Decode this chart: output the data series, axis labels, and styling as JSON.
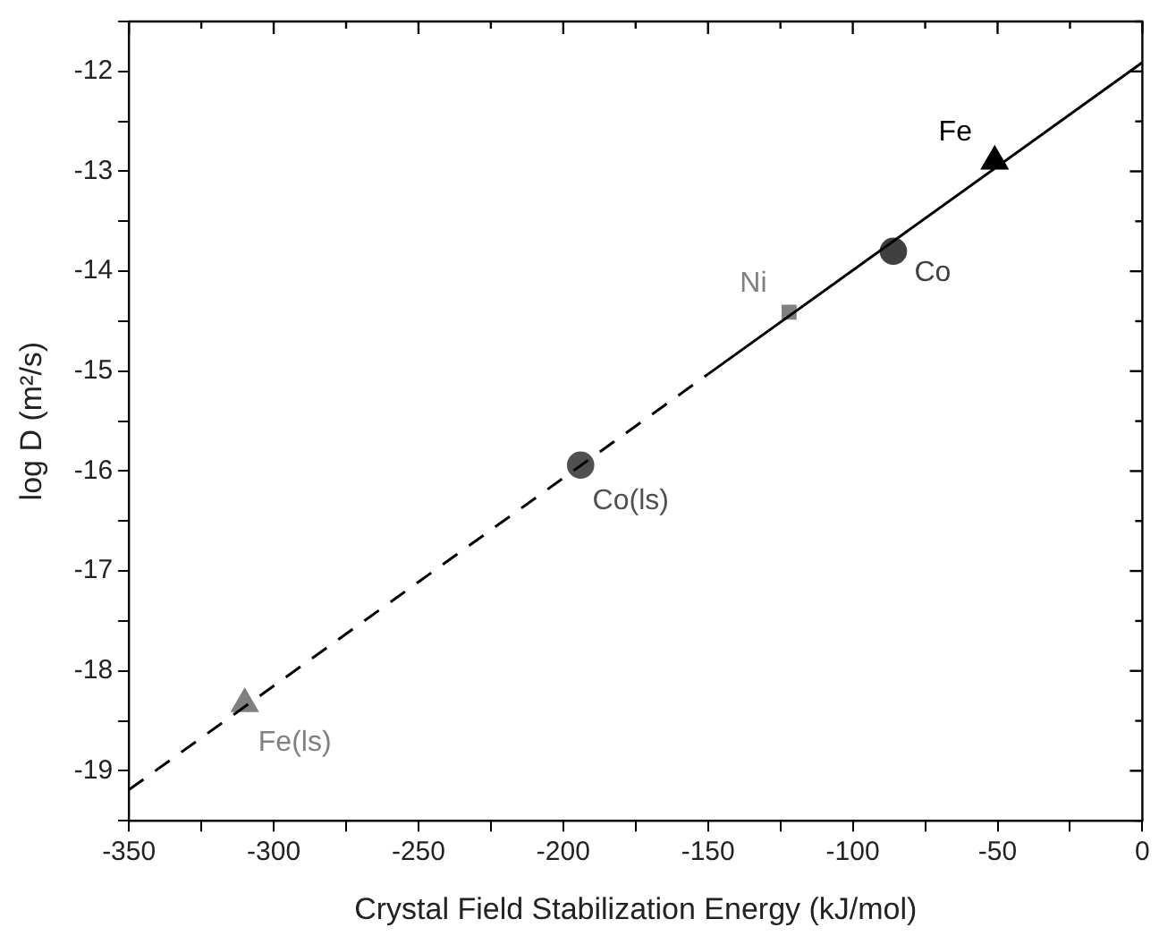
{
  "chart_data": {
    "type": "scatter",
    "xlabel": "Crystal Field Stabilization Energy (kJ/mol)",
    "ylabel": "log D (m²/s)",
    "xlim": [
      -350,
      0
    ],
    "ylim": [
      -19.5,
      -11.5
    ],
    "xticks": [
      -350,
      {
        "value": -325,
        "label": null
      },
      -300,
      {
        "value": -275,
        "label": null
      },
      -250,
      {
        "value": -225,
        "label": null
      },
      -200,
      {
        "value": -175,
        "label": null
      },
      -150,
      {
        "value": -125,
        "label": null
      },
      -100,
      {
        "value": -75,
        "label": null
      },
      -50,
      {
        "value": -25,
        "label": null
      },
      0
    ],
    "yticks": [
      {
        "value": -19.5,
        "label": null
      },
      -19,
      {
        "value": -18.5,
        "label": null
      },
      -18,
      {
        "value": -17.5,
        "label": null
      },
      -17,
      {
        "value": -16.5,
        "label": null
      },
      -16,
      {
        "value": -15.5,
        "label": null
      },
      -15,
      {
        "value": -14.5,
        "label": null
      },
      -14,
      {
        "value": -13.5,
        "label": null
      },
      -13,
      {
        "value": -12.5,
        "label": null
      },
      -12,
      {
        "value": -11.5,
        "label": null
      }
    ],
    "grid": false,
    "legend": false,
    "series": [
      {
        "type": "line",
        "color": "#000000",
        "x": [
          -350,
          -150
        ],
        "values": [
          -19.19,
          -15.03
        ],
        "line_style": "dashed",
        "marker": "none"
      },
      {
        "type": "line",
        "color": "#000000",
        "x": [
          -150,
          0
        ],
        "values": [
          -15.03,
          -11.91
        ],
        "line_style": "solid",
        "marker": "none"
      },
      {
        "name": "Fe",
        "color": "#000000",
        "x": [
          -51
        ],
        "values": [
          -12.9
        ],
        "marker": "triangle"
      },
      {
        "name": "Co",
        "color": "#404040",
        "x": [
          -86
        ],
        "values": [
          -13.8
        ],
        "marker": "circle"
      },
      {
        "name": "Ni",
        "color": "#808080",
        "x": [
          -122
        ],
        "values": [
          -14.41
        ],
        "marker": "square"
      },
      {
        "name": "Co(ls)",
        "color": "#505050",
        "x": [
          -194
        ],
        "values": [
          -15.94
        ],
        "marker": "circle"
      },
      {
        "name": "Fe(ls)",
        "color": "#808080",
        "x": [
          -310
        ],
        "values": [
          -18.33
        ],
        "marker": "triangle"
      }
    ]
  }
}
